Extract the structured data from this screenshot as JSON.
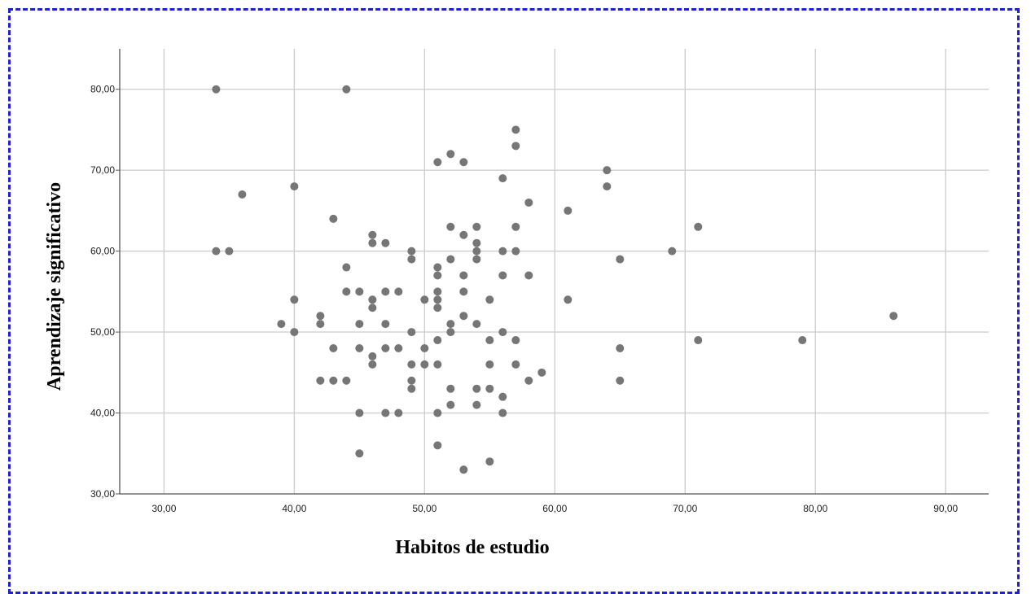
{
  "chart_data": {
    "type": "scatter",
    "xlabel": "Habitos de estudio",
    "ylabel": "Aprendizaje  significativo",
    "xlim": [
      26.6,
      93.3
    ],
    "ylim": [
      30,
      85
    ],
    "xticks": [
      "30,00",
      "40,00",
      "50,00",
      "60,00",
      "70,00",
      "80,00",
      "90,00"
    ],
    "yticks": [
      "30,00",
      "40,00",
      "50,00",
      "60,00",
      "70,00",
      "80,00"
    ],
    "xtick_values": [
      30,
      40,
      50,
      60,
      70,
      80,
      90
    ],
    "ytick_values": [
      30,
      40,
      50,
      60,
      70,
      80
    ],
    "grid": true,
    "marker_color": "#767676",
    "points": [
      [
        34,
        80
      ],
      [
        44,
        80
      ],
      [
        57,
        75
      ],
      [
        57,
        73
      ],
      [
        52,
        72
      ],
      [
        51,
        71
      ],
      [
        53,
        71
      ],
      [
        64,
        70
      ],
      [
        56,
        69
      ],
      [
        40,
        68
      ],
      [
        64,
        68
      ],
      [
        36,
        67
      ],
      [
        58,
        66
      ],
      [
        61,
        65
      ],
      [
        43,
        64
      ],
      [
        52,
        63
      ],
      [
        54,
        63
      ],
      [
        57,
        63
      ],
      [
        71,
        63
      ],
      [
        46,
        62
      ],
      [
        53,
        62
      ],
      [
        46,
        61
      ],
      [
        47,
        61
      ],
      [
        54,
        61
      ],
      [
        34,
        60
      ],
      [
        35,
        60
      ],
      [
        49,
        60
      ],
      [
        54,
        60
      ],
      [
        56,
        60
      ],
      [
        57,
        60
      ],
      [
        69,
        60
      ],
      [
        49,
        59
      ],
      [
        52,
        59
      ],
      [
        54,
        59
      ],
      [
        65,
        59
      ],
      [
        44,
        58
      ],
      [
        51,
        58
      ],
      [
        51,
        57
      ],
      [
        53,
        57
      ],
      [
        56,
        57
      ],
      [
        58,
        57
      ],
      [
        44,
        55
      ],
      [
        45,
        55
      ],
      [
        47,
        55
      ],
      [
        48,
        55
      ],
      [
        51,
        55
      ],
      [
        53,
        55
      ],
      [
        40,
        54
      ],
      [
        46,
        54
      ],
      [
        50,
        54
      ],
      [
        51,
        54
      ],
      [
        55,
        54
      ],
      [
        61,
        54
      ],
      [
        46,
        53
      ],
      [
        51,
        53
      ],
      [
        42,
        52
      ],
      [
        53,
        52
      ],
      [
        86,
        52
      ],
      [
        39,
        51
      ],
      [
        42,
        51
      ],
      [
        45,
        51
      ],
      [
        47,
        51
      ],
      [
        52,
        51
      ],
      [
        54,
        51
      ],
      [
        40,
        50
      ],
      [
        49,
        50
      ],
      [
        52,
        50
      ],
      [
        56,
        50
      ],
      [
        51,
        49
      ],
      [
        55,
        49
      ],
      [
        57,
        49
      ],
      [
        71,
        49
      ],
      [
        79,
        49
      ],
      [
        43,
        48
      ],
      [
        45,
        48
      ],
      [
        47,
        48
      ],
      [
        48,
        48
      ],
      [
        50,
        48
      ],
      [
        65,
        48
      ],
      [
        46,
        47
      ],
      [
        46,
        46
      ],
      [
        49,
        46
      ],
      [
        50,
        46
      ],
      [
        51,
        46
      ],
      [
        55,
        46
      ],
      [
        57,
        46
      ],
      [
        59,
        45
      ],
      [
        42,
        44
      ],
      [
        43,
        44
      ],
      [
        44,
        44
      ],
      [
        49,
        44
      ],
      [
        58,
        44
      ],
      [
        65,
        44
      ],
      [
        49,
        43
      ],
      [
        52,
        43
      ],
      [
        54,
        43
      ],
      [
        55,
        43
      ],
      [
        56,
        42
      ],
      [
        52,
        41
      ],
      [
        54,
        41
      ],
      [
        45,
        40
      ],
      [
        47,
        40
      ],
      [
        48,
        40
      ],
      [
        51,
        40
      ],
      [
        56,
        40
      ],
      [
        51,
        36
      ],
      [
        45,
        35
      ],
      [
        55,
        34
      ],
      [
        53,
        33
      ]
    ]
  }
}
